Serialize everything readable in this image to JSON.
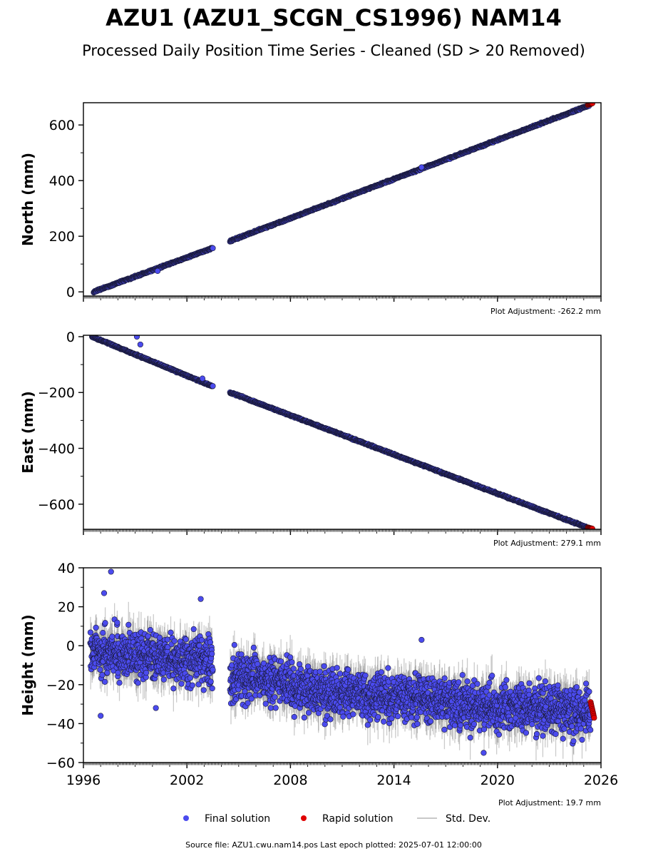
{
  "header": {
    "title": "AZU1 (AZU1_SCGN_CS1996) NAM14",
    "subtitle": "Processed Daily Position Time Series - Cleaned (SD > 20 Removed)"
  },
  "legend": {
    "final_label": "Final solution",
    "rapid_label": "Rapid solution",
    "std_label": "Std. Dev."
  },
  "footer": {
    "source": "Source file: AZU1.cwu.nam14.pos  Last epoch plotted: 2025-07-01 12:00:00"
  },
  "colors": {
    "final": "#4b4bee",
    "rapid": "#e00000",
    "std_dev": "#8c8c8c",
    "marker_edge": "#1a1a3a"
  },
  "chart_data": [
    {
      "type": "scatter",
      "ylabel": "North (mm)",
      "adjustment": "Plot Adjustment: -262.2 mm",
      "xlim": [
        1996,
        2026
      ],
      "ylim": [
        -15,
        680
      ],
      "yticks": [
        0,
        200,
        400,
        600
      ],
      "trend": {
        "slope": 23.2,
        "intercept": 0
      },
      "gap": [
        2003.5,
        2004.5
      ],
      "noise": 3,
      "segments": [
        {
          "x": [
            1996.6,
            2003.5
          ],
          "y": [
            0,
            158
          ]
        },
        {
          "x": [
            2004.5,
            2025.3
          ],
          "y": [
            183,
            670
          ]
        }
      ],
      "outliers": [
        {
          "x": 2000.3,
          "y": 75
        },
        {
          "x": 2015.6,
          "y": 448
        }
      ],
      "rapid": {
        "x": [
          2025.25,
          2025.5
        ],
        "y": [
          672,
          678
        ]
      }
    },
    {
      "type": "scatter",
      "ylabel": "East (mm)",
      "adjustment": "Plot Adjustment: 279.1 mm",
      "xlim": [
        1996,
        2026
      ],
      "ylim": [
        -690,
        5
      ],
      "yticks": [
        -600,
        -400,
        -200,
        0
      ],
      "trend": {
        "slope": -24,
        "intercept": 0
      },
      "gap": [
        2003.5,
        2004.5
      ],
      "noise": 3,
      "segments": [
        {
          "x": [
            1996.5,
            2003.5
          ],
          "y": [
            0,
            -178
          ]
        },
        {
          "x": [
            2004.5,
            2025.3
          ],
          "y": [
            -200,
            -686
          ]
        }
      ],
      "outliers": [
        {
          "x": 1999.1,
          "y": 0
        },
        {
          "x": 1999.3,
          "y": -28
        },
        {
          "x": 2002.9,
          "y": -150
        }
      ],
      "rapid": {
        "x": [
          2025.25,
          2025.5
        ],
        "y": [
          -684,
          -688
        ]
      }
    },
    {
      "type": "scatter",
      "ylabel": "Height (mm)",
      "adjustment": "Plot Adjustment: 19.7 mm",
      "xlim": [
        1996,
        2026
      ],
      "ylim": [
        -60,
        40
      ],
      "yticks": [
        -60,
        -40,
        -20,
        0,
        20,
        40
      ],
      "xticks": [
        1996,
        2002,
        2008,
        2014,
        2020,
        2026
      ],
      "gap": [
        2003.5,
        2004.5
      ],
      "noise": 8,
      "segments": [
        {
          "x": [
            1996.4,
            2003.5
          ],
          "y": [
            -3,
            -8
          ]
        },
        {
          "x": [
            2004.5,
            2008.0
          ],
          "y": [
            -16,
            -18
          ]
        },
        {
          "x": [
            2008.0,
            2017.0
          ],
          "y": [
            -22,
            -28
          ]
        },
        {
          "x": [
            2017.0,
            2025.4
          ],
          "y": [
            -30,
            -34
          ]
        }
      ],
      "outliers": [
        {
          "x": 1997.6,
          "y": 38
        },
        {
          "x": 1997.2,
          "y": 27
        },
        {
          "x": 2002.8,
          "y": 24
        },
        {
          "x": 1997.0,
          "y": -36
        },
        {
          "x": 2000.2,
          "y": -32
        },
        {
          "x": 2015.6,
          "y": 3
        },
        {
          "x": 2019.2,
          "y": -55
        }
      ],
      "rapid": {
        "x": [
          2025.4,
          2025.6
        ],
        "y": [
          -29,
          -37
        ]
      }
    }
  ]
}
